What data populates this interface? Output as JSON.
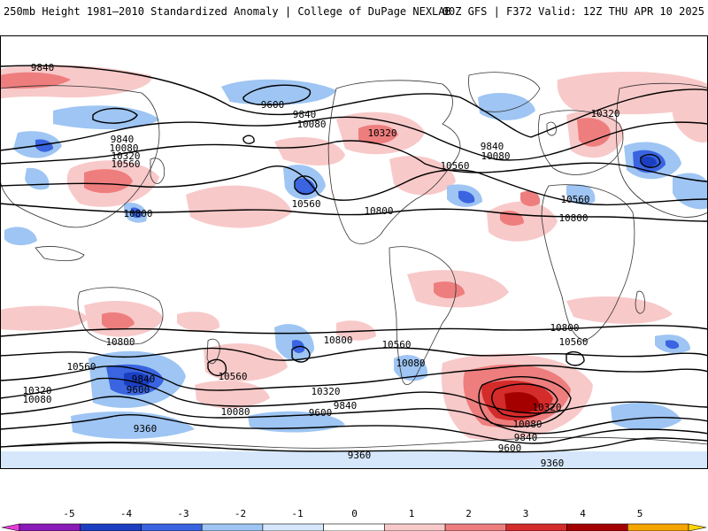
{
  "header": {
    "left": "250mb Height 1981–2010 Standardized Anomaly | College of DuPage NEXLAB",
    "right": "00Z GFS | F372 Valid: 12Z THU APR 10 2025"
  },
  "colorbar": {
    "ticks": [
      "-5",
      "-4",
      "-3",
      "-2",
      "-1",
      "0",
      "1",
      "2",
      "3",
      "4",
      "5"
    ],
    "colors": [
      "#e83cd9",
      "#8a1ab8",
      "#1c3fc2",
      "#3a64e0",
      "#9ec5f3",
      "#d6e7fb",
      "#ffffff",
      "#f8c9c9",
      "#ee7e7e",
      "#d42b2b",
      "#a50000",
      "#f5a500",
      "#ffd400"
    ]
  },
  "map": {
    "contour_labels": [
      {
        "id": "9840-nw",
        "text": "9840"
      },
      {
        "id": "9600-npac",
        "text": "9600"
      },
      {
        "id": "9840-npac",
        "text": "9840"
      },
      {
        "id": "10080-npac",
        "text": "10080"
      },
      {
        "id": "10320-canada",
        "text": "10320"
      },
      {
        "id": "9840-asia",
        "text": "9840"
      },
      {
        "id": "10080-asia",
        "text": "10080"
      },
      {
        "id": "10320-asia",
        "text": "10320"
      },
      {
        "id": "10560-asia",
        "text": "10560"
      },
      {
        "id": "10800-asia",
        "text": "10800"
      },
      {
        "id": "10560-pac",
        "text": "10560"
      },
      {
        "id": "10800-pac",
        "text": "10800"
      },
      {
        "id": "10560-atl",
        "text": "10560"
      },
      {
        "id": "9840-atl",
        "text": "9840"
      },
      {
        "id": "10080-atl",
        "text": "10080"
      },
      {
        "id": "10320-eur",
        "text": "10320"
      },
      {
        "id": "10560-eur",
        "text": "10560"
      },
      {
        "id": "10800-eur",
        "text": "10800"
      },
      {
        "id": "10800-aus",
        "text": "10800"
      },
      {
        "id": "10800-spac",
        "text": "10800"
      },
      {
        "id": "10560-spac",
        "text": "10560"
      },
      {
        "id": "10560-sw",
        "text": "10560"
      },
      {
        "id": "10320-sw",
        "text": "10320"
      },
      {
        "id": "10080-sw",
        "text": "10080"
      },
      {
        "id": "9840-sw",
        "text": "9840"
      },
      {
        "id": "9600-sw",
        "text": "9600"
      },
      {
        "id": "9360-sw",
        "text": "9360"
      },
      {
        "id": "10560-nz",
        "text": "10560"
      },
      {
        "id": "10080-spac2",
        "text": "10080"
      },
      {
        "id": "10320-spac",
        "text": "10320"
      },
      {
        "id": "9840-spac",
        "text": "9840"
      },
      {
        "id": "9600-spac",
        "text": "9600"
      },
      {
        "id": "9360-ant",
        "text": "9360"
      },
      {
        "id": "10080-satl",
        "text": "10080"
      },
      {
        "id": "10800-satl",
        "text": "10800"
      },
      {
        "id": "10560-satl",
        "text": "10560"
      },
      {
        "id": "10320-satl",
        "text": "10320"
      },
      {
        "id": "10080-satl2",
        "text": "10080"
      },
      {
        "id": "9840-satl",
        "text": "9840"
      },
      {
        "id": "9600-satl",
        "text": "9600"
      },
      {
        "id": "9360-satl",
        "text": "9360"
      }
    ]
  }
}
